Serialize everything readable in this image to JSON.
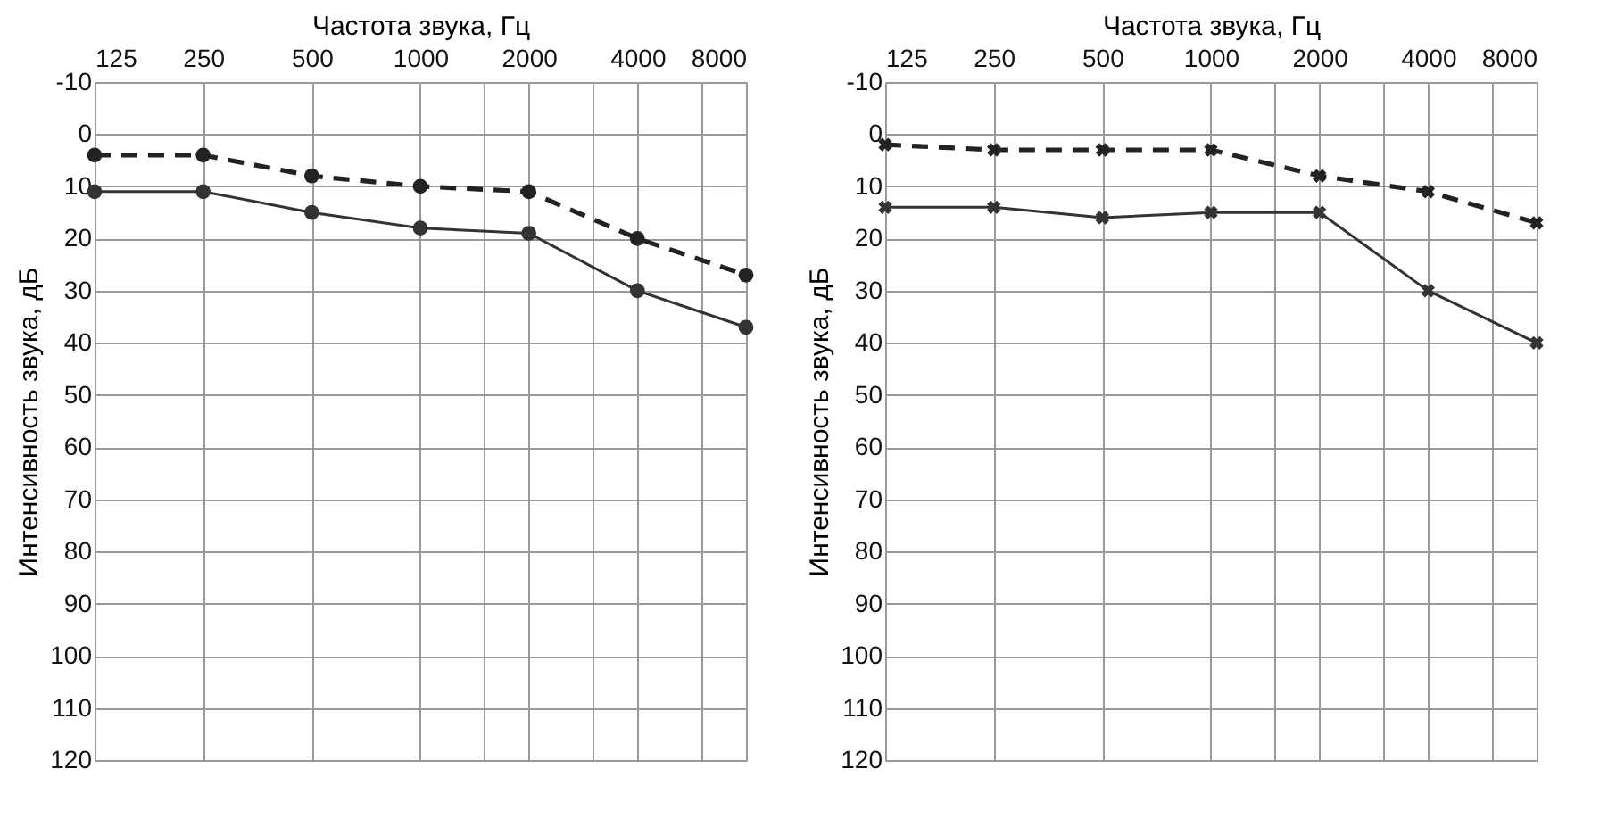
{
  "chart_data": [
    {
      "type": "line",
      "xlabel": "Частота звука, Гц",
      "ylabel": "Интенсивность звука, дБ",
      "log": "x",
      "grid": true,
      "legend": false,
      "x": [
        125,
        250,
        500,
        1000,
        2000,
        4000,
        8000
      ],
      "xlim": [
        125,
        8000
      ],
      "xticks": [
        125,
        250,
        500,
        1000,
        {
          "value": 1500,
          "label": null
        },
        2000,
        {
          "value": 3000,
          "label": null
        },
        4000,
        {
          "value": 6000,
          "label": null
        },
        8000
      ],
      "ylim": [
        120,
        -10
      ],
      "yticks": [
        -10,
        0,
        10,
        20,
        30,
        40,
        50,
        60,
        70,
        80,
        90,
        100,
        110,
        120
      ],
      "marker": "circle",
      "series": [
        {
          "color": "#222222",
          "line_style": "dashed",
          "values": [
            4,
            4,
            8,
            10,
            11,
            20,
            27
          ]
        },
        {
          "color": "#333333",
          "line_style": "solid",
          "values": [
            11,
            11,
            15,
            18,
            19,
            30,
            37
          ]
        }
      ]
    },
    {
      "type": "line",
      "xlabel": "Частота звука, Гц",
      "ylabel": "Интенсивность звука, дБ",
      "log": "x",
      "grid": true,
      "legend": false,
      "x": [
        125,
        250,
        500,
        1000,
        2000,
        4000,
        8000
      ],
      "xlim": [
        125,
        8000
      ],
      "xticks": [
        125,
        250,
        500,
        1000,
        {
          "value": 1500,
          "label": null
        },
        2000,
        {
          "value": 3000,
          "label": null
        },
        4000,
        {
          "value": 6000,
          "label": null
        },
        8000
      ],
      "ylim": [
        120,
        -10
      ],
      "yticks": [
        -10,
        0,
        10,
        20,
        30,
        40,
        50,
        60,
        70,
        80,
        90,
        100,
        110,
        120
      ],
      "marker": "cross",
      "series": [
        {
          "color": "#222222",
          "line_style": "dashed",
          "values": [
            2,
            3,
            3,
            3,
            8,
            11,
            17
          ]
        },
        {
          "color": "#333333",
          "line_style": "solid",
          "values": [
            14,
            14,
            16,
            15,
            15,
            30,
            40
          ]
        }
      ]
    }
  ]
}
